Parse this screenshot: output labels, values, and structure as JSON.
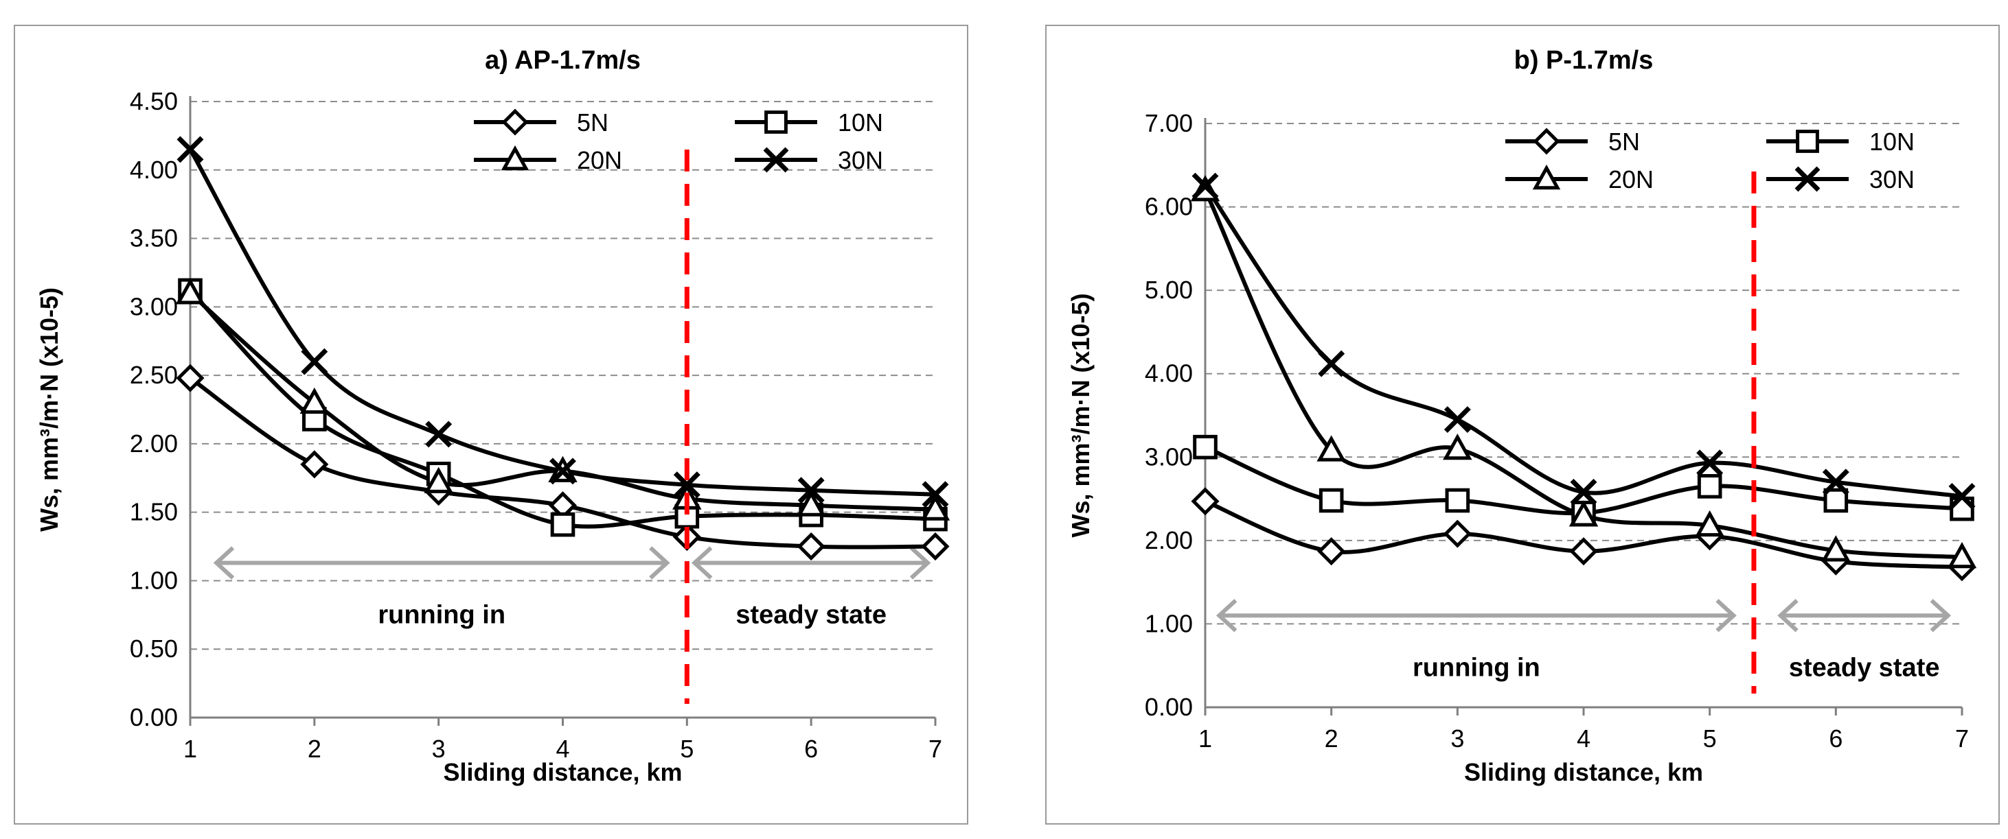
{
  "chart_data": [
    {
      "type": "line",
      "title": "a) AP-1.7m/s",
      "xlabel": "Sliding distance, km",
      "ylabel": "Ws, mm³/m·N (x10-5)",
      "x": [
        1,
        2,
        3,
        4,
        5,
        6,
        7
      ],
      "xlim": [
        1,
        7
      ],
      "ylim": [
        0,
        4.5
      ],
      "yticks": [
        "0.00",
        "0.50",
        "1.00",
        "1.50",
        "2.00",
        "2.50",
        "3.00",
        "3.50",
        "4.00",
        "4.50"
      ],
      "xticks": [
        "1",
        "2",
        "3",
        "4",
        "5",
        "6",
        "7"
      ],
      "grid": "horizontal dashed",
      "legend_position": "top-right",
      "series": [
        {
          "name": "5N",
          "marker": "diamond",
          "values": [
            2.48,
            1.85,
            1.65,
            1.55,
            1.32,
            1.25,
            1.25
          ]
        },
        {
          "name": "10N",
          "marker": "square",
          "values": [
            3.12,
            2.18,
            1.78,
            1.41,
            1.47,
            1.48,
            1.45
          ]
        },
        {
          "name": "20N",
          "marker": "triangle",
          "values": [
            3.1,
            2.3,
            1.72,
            1.8,
            1.6,
            1.55,
            1.52
          ]
        },
        {
          "name": "30N",
          "marker": "cross",
          "values": [
            4.15,
            2.6,
            2.07,
            1.8,
            1.7,
            1.66,
            1.63
          ]
        }
      ],
      "divider": {
        "x": 5,
        "color": "#ff0000"
      },
      "annotations": [
        {
          "text": "running in",
          "x_from": 1.2,
          "x_to": 4.85,
          "y": 1.13
        },
        {
          "text": "steady state",
          "x_from": 5.05,
          "x_to": 6.95,
          "y": 1.13
        }
      ]
    },
    {
      "type": "line",
      "title": "b) P-1.7m/s",
      "xlabel": "Sliding distance, km",
      "ylabel": "Ws, mm³/m·N (x10-5)",
      "x": [
        1,
        2,
        3,
        4,
        5,
        6,
        7
      ],
      "xlim": [
        1,
        7
      ],
      "ylim": [
        0,
        7
      ],
      "yticks": [
        "0.00",
        "1.00",
        "2.00",
        "3.00",
        "4.00",
        "5.00",
        "6.00",
        "7.00"
      ],
      "xticks": [
        "1",
        "2",
        "3",
        "4",
        "5",
        "6",
        "7"
      ],
      "grid": "horizontal dashed",
      "legend_position": "top-right",
      "series": [
        {
          "name": "5N",
          "marker": "diamond",
          "values": [
            2.47,
            1.87,
            2.08,
            1.87,
            2.05,
            1.75,
            1.68
          ]
        },
        {
          "name": "10N",
          "marker": "square",
          "values": [
            3.12,
            2.48,
            2.48,
            2.33,
            2.65,
            2.48,
            2.38
          ]
        },
        {
          "name": "20N",
          "marker": "triangle",
          "values": [
            6.2,
            3.08,
            3.1,
            2.3,
            2.18,
            1.88,
            1.8
          ]
        },
        {
          "name": "30N",
          "marker": "cross",
          "values": [
            6.25,
            4.12,
            3.45,
            2.58,
            2.93,
            2.7,
            2.53
          ]
        }
      ],
      "divider": {
        "x": 5.35,
        "color": "#ff0000"
      },
      "annotations": [
        {
          "text": "running in",
          "x_from": 1.1,
          "x_to": 5.2,
          "y": 1.1
        },
        {
          "text": "steady state",
          "x_from": 5.55,
          "x_to": 6.9,
          "y": 1.1
        }
      ]
    }
  ]
}
